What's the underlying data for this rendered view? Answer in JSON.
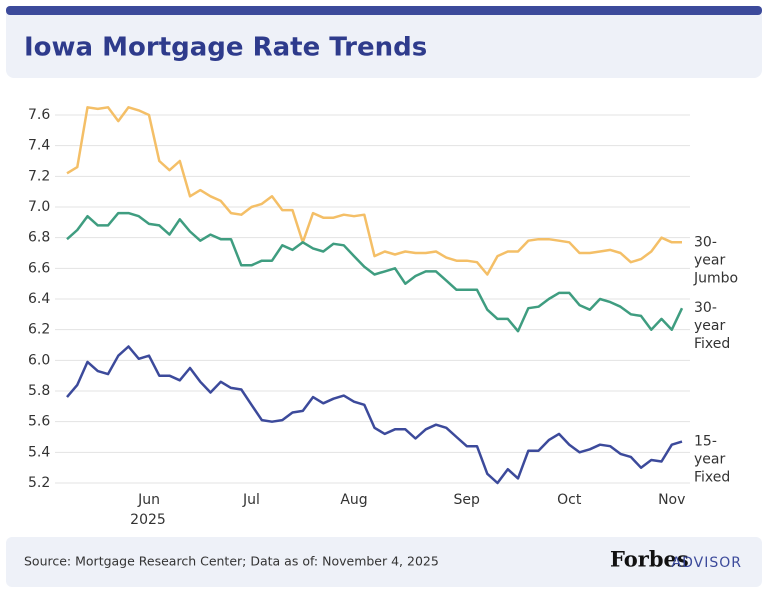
{
  "chart_data": {
    "type": "line",
    "title": "Iowa Mortgage Rate Trends",
    "source": "Source: Mortgage Research Center; Data as of: November 4, 2025",
    "brand": "Forbes",
    "brand_sub": "ADVISOR",
    "year_label": "2025",
    "categories": [
      null,
      null,
      null,
      null,
      null,
      null,
      null,
      null,
      "Jun",
      null,
      null,
      null,
      null,
      null,
      null,
      null,
      null,
      null,
      "Jul",
      null,
      null,
      null,
      null,
      null,
      null,
      null,
      null,
      null,
      "Aug",
      null,
      null,
      null,
      null,
      null,
      null,
      null,
      null,
      null,
      null,
      "Sep",
      null,
      null,
      null,
      null,
      null,
      null,
      null,
      null,
      null,
      "Oct",
      null,
      null,
      null,
      null,
      null,
      null,
      null,
      null,
      null,
      "Nov",
      null
    ],
    "ylim": [
      5.2,
      7.6
    ],
    "yticks": [
      5.2,
      5.4,
      5.6,
      5.8,
      {
        "value": 6,
        "label": "6.0"
      },
      6.2,
      6.4,
      6.6,
      6.8,
      {
        "value": 7,
        "label": "7.0"
      },
      7.2,
      7.4,
      7.6
    ],
    "grid": true,
    "series": [
      {
        "name": "30-year Jumbo",
        "color": "#f4bf67",
        "values": [
          7.22,
          7.26,
          7.65,
          7.64,
          7.65,
          7.56,
          7.65,
          7.63,
          7.6,
          7.3,
          7.24,
          7.3,
          7.07,
          7.11,
          7.07,
          7.04,
          6.96,
          6.95,
          7.0,
          7.02,
          7.07,
          6.98,
          6.98,
          6.77,
          6.96,
          6.93,
          6.93,
          6.95,
          6.94,
          6.95,
          6.68,
          6.71,
          6.69,
          6.71,
          6.7,
          6.7,
          6.71,
          6.67,
          6.65,
          6.65,
          6.64,
          6.56,
          6.68,
          6.71,
          6.71,
          6.78,
          6.79,
          6.79,
          6.78,
          6.77,
          6.7,
          6.7,
          6.71,
          6.72,
          6.7,
          6.64,
          6.66,
          6.71,
          6.8,
          6.77,
          6.77
        ]
      },
      {
        "name": "30-year Fixed",
        "color": "#3f9d80",
        "values": [
          6.79,
          6.85,
          6.94,
          6.88,
          6.88,
          6.96,
          6.96,
          6.94,
          6.89,
          6.88,
          6.82,
          6.92,
          6.84,
          6.78,
          6.82,
          6.79,
          6.79,
          6.62,
          6.62,
          6.65,
          6.65,
          6.75,
          6.72,
          6.77,
          6.73,
          6.71,
          6.76,
          6.75,
          6.68,
          6.61,
          6.56,
          6.58,
          6.6,
          6.5,
          6.55,
          6.58,
          6.58,
          6.52,
          6.46,
          6.46,
          6.46,
          6.33,
          6.27,
          6.27,
          6.19,
          6.34,
          6.35,
          6.4,
          6.44,
          6.44,
          6.36,
          6.33,
          6.4,
          6.38,
          6.35,
          6.3,
          6.29,
          6.2,
          6.27,
          6.2,
          6.34
        ]
      },
      {
        "name": "15-year Fixed",
        "color": "#3c4a9b",
        "values": [
          5.76,
          5.84,
          5.99,
          5.93,
          5.91,
          6.03,
          6.09,
          6.01,
          6.03,
          5.9,
          5.9,
          5.87,
          5.95,
          5.86,
          5.79,
          5.86,
          5.82,
          5.81,
          5.71,
          5.61,
          5.6,
          5.61,
          5.66,
          5.67,
          5.76,
          5.72,
          5.75,
          5.77,
          5.73,
          5.71,
          5.56,
          5.52,
          5.55,
          5.55,
          5.49,
          5.55,
          5.58,
          5.56,
          5.5,
          5.44,
          5.44,
          5.26,
          5.2,
          5.29,
          5.23,
          5.41,
          5.41,
          5.48,
          5.52,
          5.45,
          5.4,
          5.42,
          5.45,
          5.44,
          5.39,
          5.37,
          5.3,
          5.35,
          5.34,
          5.45,
          5.47
        ]
      }
    ]
  }
}
